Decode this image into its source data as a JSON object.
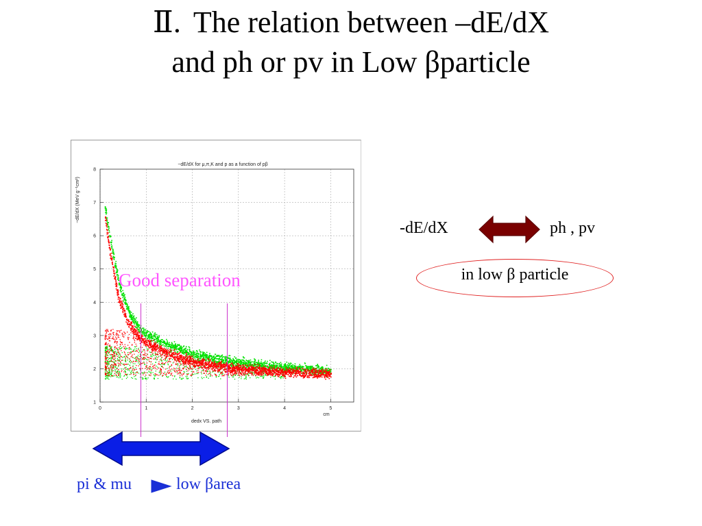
{
  "title": {
    "numeral": "Ⅱ.",
    "line1": "The relation between –dE/dX",
    "line2": "and ph or pv in Low βparticle"
  },
  "chart_data": {
    "type": "scatter",
    "title": "−dE/dX for μ,π,K and p as a function of pβ",
    "xlabel": "dedx VS. path",
    "x_unit": "cm",
    "ylabel": "−dE/dX (MeV g⁻¹cm²)",
    "xlim": [
      0,
      5.5
    ],
    "ylim": [
      1,
      8
    ],
    "x_ticks": [
      "0",
      "1",
      "2",
      "3",
      "4",
      "5"
    ],
    "y_ticks": [
      "1",
      "2",
      "3",
      "4",
      "5",
      "6",
      "7",
      "8"
    ],
    "grid": true,
    "series": [
      {
        "color": "#00e000",
        "band_center": [
          [
            0.1,
            6.9
          ],
          [
            0.2,
            6.0
          ],
          [
            0.4,
            4.6
          ],
          [
            0.6,
            3.8
          ],
          [
            0.8,
            3.3
          ],
          [
            1.0,
            3.05
          ],
          [
            1.5,
            2.7
          ],
          [
            2.0,
            2.45
          ],
          [
            2.5,
            2.3
          ],
          [
            3.0,
            2.2
          ],
          [
            3.5,
            2.12
          ],
          [
            4.0,
            2.05
          ],
          [
            4.5,
            2.0
          ],
          [
            5.0,
            1.95
          ]
        ],
        "low_cloud": [
          1.7,
          2.7
        ]
      },
      {
        "color": "#ff0000",
        "band_center": [
          [
            0.1,
            6.6
          ],
          [
            0.2,
            5.6
          ],
          [
            0.4,
            4.1
          ],
          [
            0.6,
            3.4
          ],
          [
            0.8,
            3.0
          ],
          [
            1.0,
            2.8
          ],
          [
            1.5,
            2.45
          ],
          [
            2.0,
            2.25
          ],
          [
            2.5,
            2.1
          ],
          [
            3.0,
            2.02
          ],
          [
            3.5,
            1.96
          ],
          [
            4.0,
            1.92
          ],
          [
            4.5,
            1.88
          ],
          [
            5.0,
            1.86
          ]
        ],
        "low_cloud": [
          1.8,
          3.2
        ]
      }
    ],
    "markers_x": [
      1,
      3
    ]
  },
  "overlay": {
    "label": "Good separation"
  },
  "relation": {
    "left_label": "-dE/dX",
    "right_label": "ph , pv",
    "arrow_color": "#7a0000",
    "condition": "in low β particle"
  },
  "bottom": {
    "left_label": "pi & mu",
    "right_label": "low βarea",
    "arrow_color": "#0a1ee6"
  }
}
